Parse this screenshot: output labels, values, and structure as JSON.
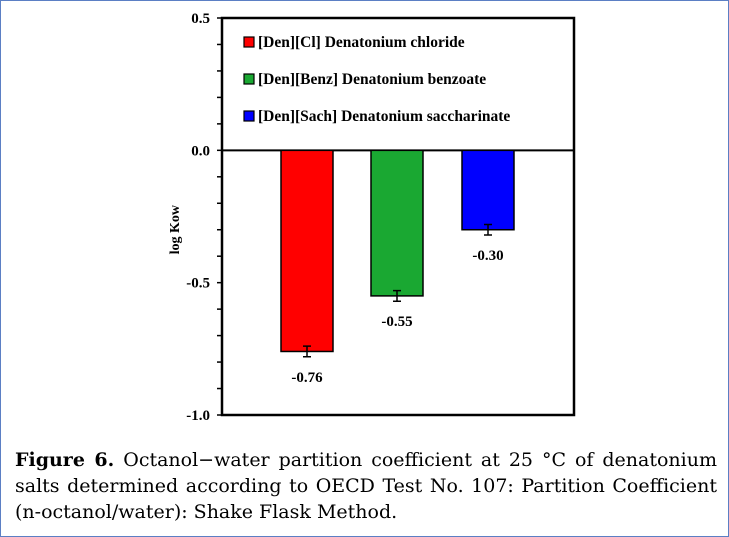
{
  "chart_data": {
    "type": "bar",
    "categories": [
      "[Den][Cl] Denatonium chloride",
      "[Den][Benz] Denatonium benzoate",
      "[Den][Sach] Denatonium saccharinate"
    ],
    "values": [
      -0.76,
      -0.55,
      -0.3
    ],
    "errors": [
      0.02,
      0.02,
      0.02
    ],
    "data_labels": [
      "-0.76",
      "-0.55",
      "-0.30"
    ],
    "colors": [
      "#ff0000",
      "#1aa832",
      "#0000ff"
    ],
    "ylabel": "log Kow",
    "xlabel": "",
    "ylim": [
      -1.0,
      0.5
    ],
    "yticks": [
      0.5,
      0.0,
      -0.5,
      -1.0
    ],
    "ytick_labels": [
      "0.5",
      "0.0",
      "-0.5",
      "-1.0"
    ],
    "minor_tick_step": 0.1,
    "legend_position": "top-left",
    "grid": false
  },
  "caption": {
    "label": "Figure 6.",
    "text": " Octanol−water partition coefficient at 25 °C of denatonium salts determined according to OECD Test No. 107: Partition Coefficient (n-octanol/water): Shake Flask Method."
  }
}
